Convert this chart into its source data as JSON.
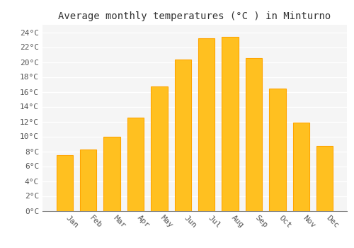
{
  "months": [
    "Jan",
    "Feb",
    "Mar",
    "Apr",
    "May",
    "Jun",
    "Jul",
    "Aug",
    "Sep",
    "Oct",
    "Nov",
    "Dec"
  ],
  "temperatures": [
    7.5,
    8.2,
    10.0,
    12.5,
    16.7,
    20.3,
    23.2,
    23.4,
    20.5,
    16.4,
    11.9,
    8.7
  ],
  "bar_color": "#FFC020",
  "bar_edge_color": "#FFA500",
  "title": "Average monthly temperatures (°C ) in Minturno",
  "ylim": [
    0,
    25
  ],
  "ytick_step": 2,
  "background_color": "#FFFFFF",
  "plot_bg_color": "#F5F5F5",
  "title_fontsize": 10,
  "tick_fontsize": 8,
  "grid_color": "#FFFFFF",
  "font_family": "monospace"
}
